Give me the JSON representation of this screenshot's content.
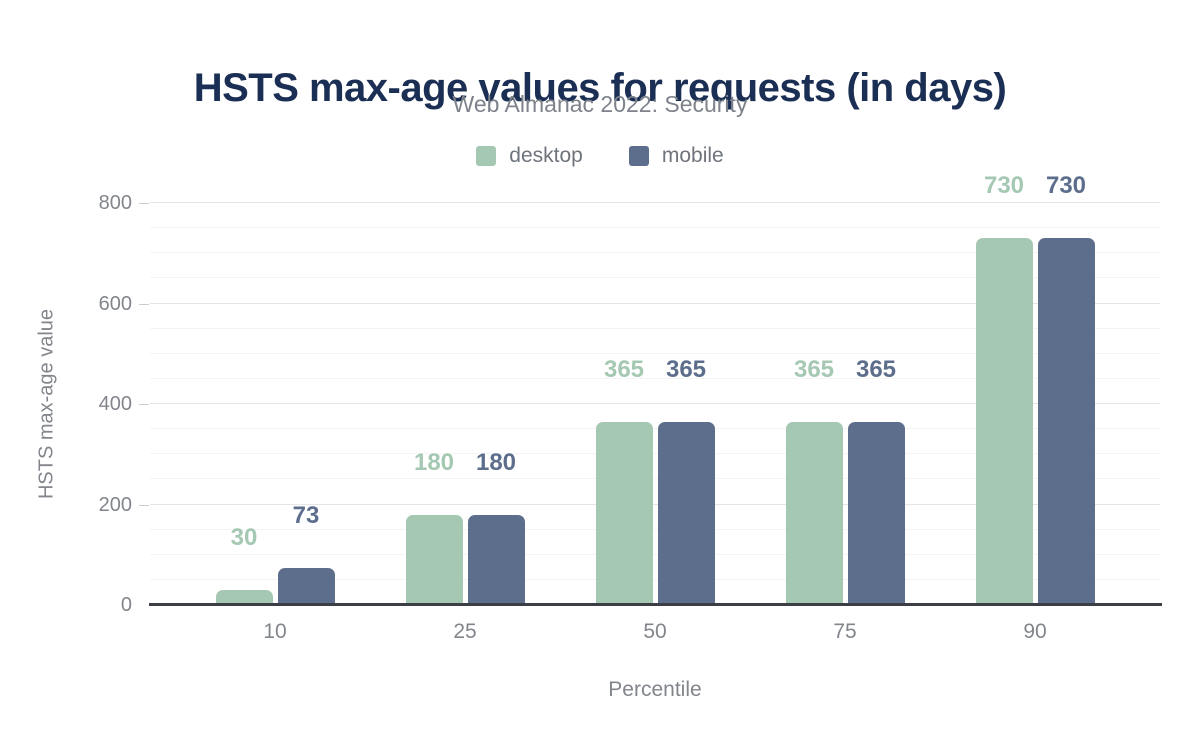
{
  "chart_data": {
    "type": "bar",
    "title": "HSTS max-age values for requests (in days)",
    "subtitle": "Web Almanac 2022: Security",
    "categories": [
      "10",
      "25",
      "50",
      "75",
      "90"
    ],
    "series": [
      {
        "name": "desktop",
        "color": "#a5c8b3",
        "values": [
          30,
          180,
          365,
          365,
          730
        ]
      },
      {
        "name": "mobile",
        "color": "#5d6e8c",
        "values": [
          73,
          180,
          365,
          365,
          730
        ]
      }
    ],
    "value_labels_shown": true,
    "xlabel": "Percentile",
    "ylabel": "HSTS max-age value",
    "ylim": [
      0,
      800
    ],
    "yticks": [
      0,
      200,
      400,
      600,
      800
    ],
    "minor_grid_step": 50,
    "grid": "horizontal",
    "legend_position": "top",
    "style": {
      "title_color": "#1b2f54",
      "subtitle_color": "#7e838b",
      "legend_text_color": "#6f747c",
      "axis_text_color": "#82868c",
      "axis_line_color": "#3b3f45",
      "grid_major_color": "#e5e5e5",
      "grid_minor_color": "#f4f4f4",
      "tick_mark_color": "#cccccc",
      "background": "#ffffff"
    }
  }
}
